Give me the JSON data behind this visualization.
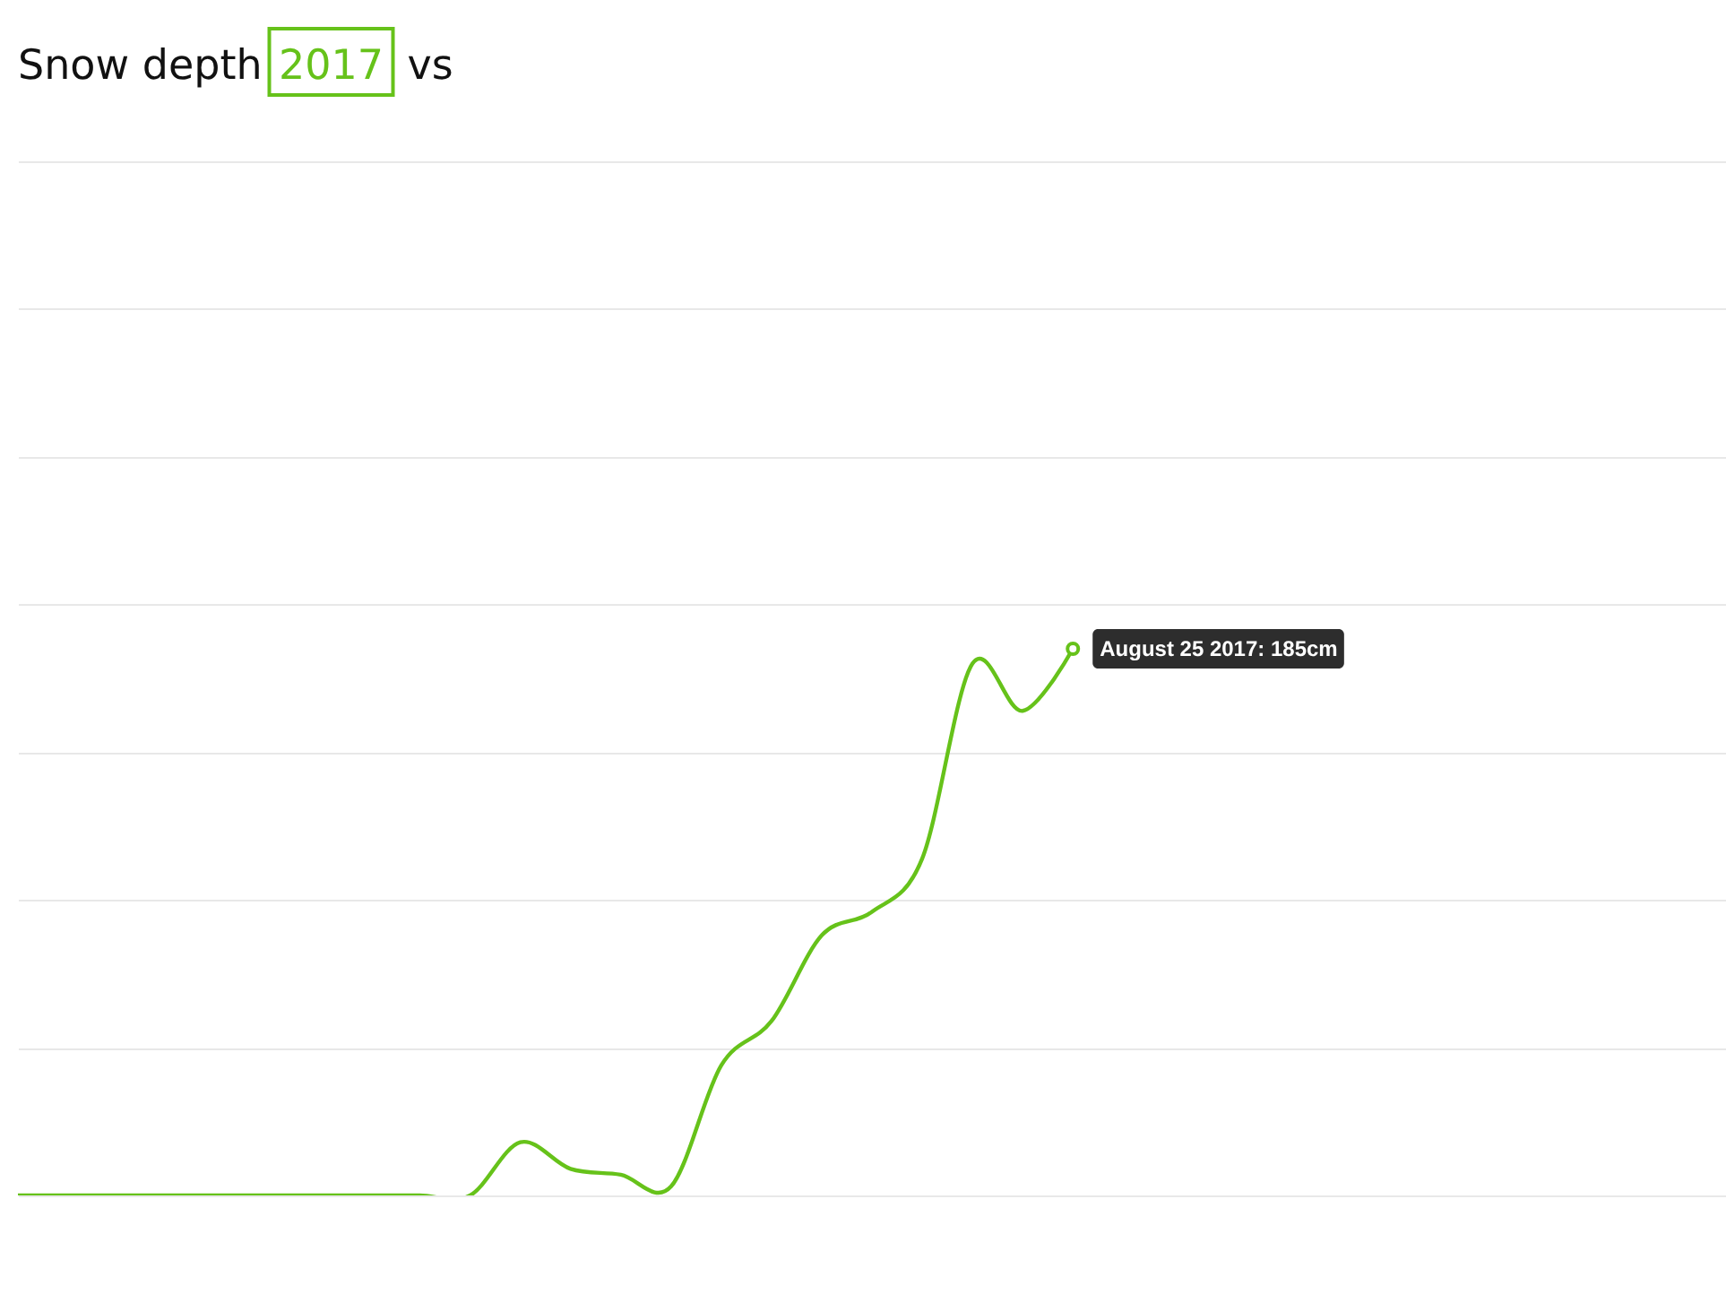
{
  "chart_data": {
    "type": "line",
    "title": "Snow depth",
    "annotations": [
      "vs"
    ],
    "categories": [
      null,
      null,
      null,
      null,
      null,
      null,
      null,
      null,
      null,
      null,
      null,
      null,
      null,
      null,
      null,
      null,
      null,
      null,
      null,
      null,
      null,
      null,
      null,
      null,
      null,
      null,
      null,
      null,
      null,
      null,
      null,
      null,
      null,
      null,
      null
    ],
    "series": [
      {
        "name": "2017",
        "color": "#66c21a",
        "values": [
          0,
          0,
          0,
          0,
          0,
          0,
          0,
          0,
          0,
          0,
          18,
          9,
          7,
          3,
          44,
          59,
          88,
          96,
          114,
          180,
          164,
          185,
          null,
          null,
          null,
          null,
          null,
          null,
          null,
          null,
          null,
          null,
          null,
          null,
          null
        ],
        "value_labels": [
          null,
          null,
          null,
          null,
          null,
          null,
          null,
          null,
          null,
          null,
          null,
          null,
          null,
          null,
          null,
          null,
          null,
          null,
          null,
          null,
          null,
          "August 25 2017: 185cm",
          null,
          null,
          null,
          null,
          null,
          null,
          null,
          null,
          null,
          null,
          null,
          null,
          null
        ]
      }
    ],
    "ylim": [
      0,
      350
    ],
    "yticks": [
      0,
      50,
      100,
      150,
      200,
      250,
      300,
      350
    ],
    "grid": "y",
    "tick_labels": false,
    "legend": "top left",
    "line_style": "solid"
  }
}
